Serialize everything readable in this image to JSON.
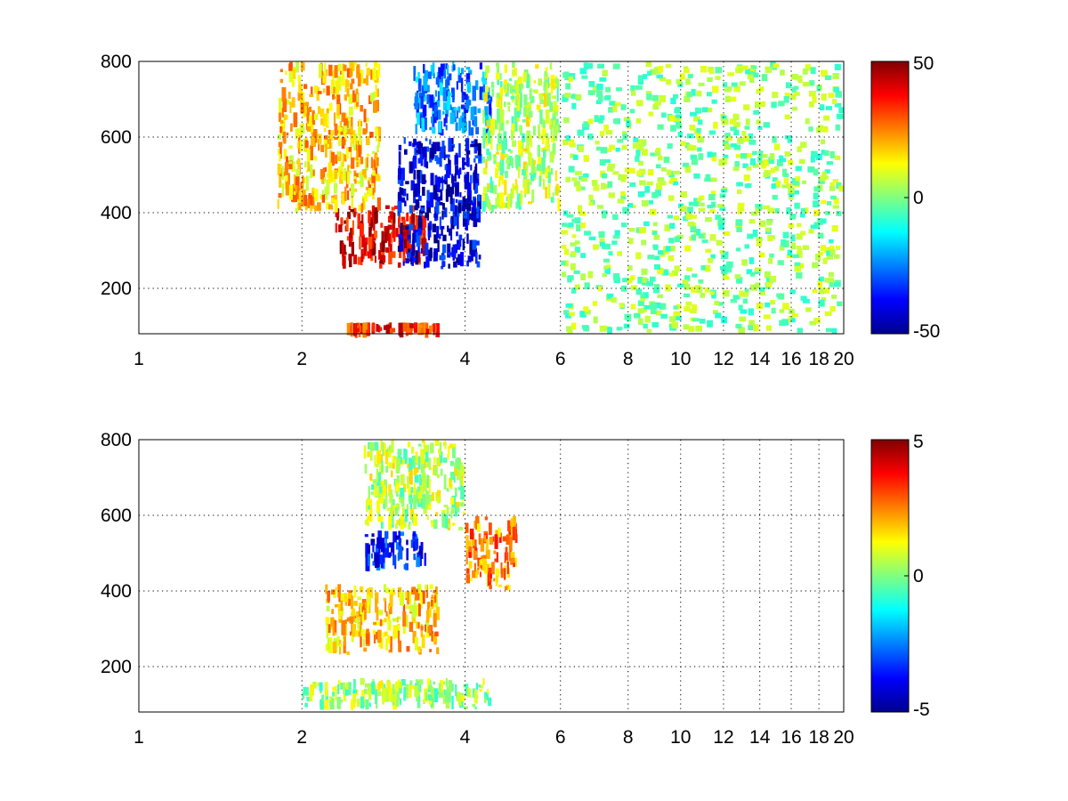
{
  "figure": {
    "background": "#ffffff"
  },
  "chart_data": [
    {
      "type": "heatmap",
      "title": "",
      "xlabel": "",
      "ylabel": "",
      "xscale": "log",
      "xlim": [
        1,
        20
      ],
      "ylim": [
        80,
        800
      ],
      "xticks": [
        1,
        2,
        4,
        6,
        8,
        10,
        12,
        14,
        16,
        18,
        20
      ],
      "xtick_labels": [
        "1",
        "2",
        "4",
        "6",
        "8",
        "10",
        "12",
        "14",
        "16",
        "18",
        "20"
      ],
      "yticks": [
        200,
        400,
        600,
        800
      ],
      "ytick_labels": [
        "200",
        "400",
        "600",
        "800"
      ],
      "grid": true,
      "colormap": "jet",
      "clim": [
        -50,
        50
      ],
      "colorbar": {
        "ticks": [
          -50,
          0,
          50
        ],
        "tick_labels": [
          "-50",
          "0",
          "50"
        ]
      },
      "features": [
        {
          "x_range": [
            2.3,
            3.4
          ],
          "y_range": [
            250,
            420
          ],
          "value": 40
        },
        {
          "x_range": [
            2.4,
            3.6
          ],
          "y_range": [
            80,
            110
          ],
          "value": 35
        },
        {
          "x_range": [
            3.0,
            4.3
          ],
          "y_range": [
            250,
            600
          ],
          "value": -40
        },
        {
          "x_range": [
            3.2,
            4.5
          ],
          "y_range": [
            600,
            800
          ],
          "value": -25
        },
        {
          "x_range": [
            1.8,
            2.8
          ],
          "y_range": [
            400,
            800
          ],
          "value": 18
        },
        {
          "x_range": [
            4.3,
            6.0
          ],
          "y_range": [
            400,
            800
          ],
          "value": 5
        },
        {
          "x_range": [
            6.0,
            20
          ],
          "y_range": [
            80,
            800
          ],
          "value": 3,
          "sparse": true
        }
      ]
    },
    {
      "type": "heatmap",
      "title": "",
      "xlabel": "",
      "ylabel": "",
      "xscale": "log",
      "xlim": [
        1,
        20
      ],
      "ylim": [
        80,
        800
      ],
      "xticks": [
        1,
        2,
        4,
        6,
        8,
        10,
        12,
        14,
        16,
        18,
        20
      ],
      "xtick_labels": [
        "1",
        "2",
        "4",
        "6",
        "8",
        "10",
        "12",
        "14",
        "16",
        "18",
        "20"
      ],
      "yticks": [
        200,
        400,
        600,
        800
      ],
      "ytick_labels": [
        "200",
        "400",
        "600",
        "800"
      ],
      "grid": true,
      "colormap": "jet",
      "clim": [
        -5,
        5
      ],
      "colorbar": {
        "ticks": [
          -5,
          0,
          5
        ],
        "tick_labels": [
          "-5",
          "0",
          "5"
        ]
      },
      "features": [
        {
          "x_range": [
            2.2,
            3.6
          ],
          "y_range": [
            230,
            420
          ],
          "value": 1.8
        },
        {
          "x_range": [
            2.6,
            3.4
          ],
          "y_range": [
            450,
            560
          ],
          "value": -3.5
        },
        {
          "x_range": [
            2.6,
            4.0
          ],
          "y_range": [
            560,
            800
          ],
          "value": 0.5
        },
        {
          "x_range": [
            4.0,
            5.0
          ],
          "y_range": [
            400,
            600
          ],
          "value": 2.5
        },
        {
          "x_range": [
            2.0,
            4.5
          ],
          "y_range": [
            85,
            170
          ],
          "value": 0.3
        }
      ]
    }
  ]
}
